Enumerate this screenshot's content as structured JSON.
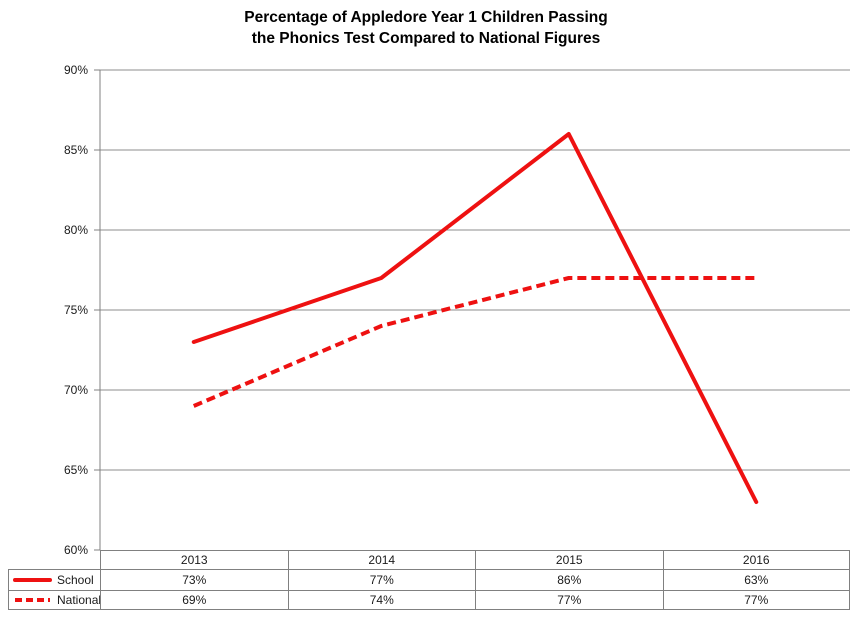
{
  "title": "Percentage of Appledore Year 1 Children Passing\nthe Phonics Test Compared to National Figures",
  "colors": {
    "series": "#EE1111",
    "gridline": "#8C8C8C",
    "axis": "#808080",
    "table_border": "#808080",
    "text": "#1A1A1A"
  },
  "chart_data": {
    "type": "line",
    "title": "Percentage of Appledore Year 1 Children Passing the Phonics Test Compared to National Figures",
    "categories": [
      "2013",
      "2014",
      "2015",
      "2016"
    ],
    "series": [
      {
        "name": "School",
        "style": "solid",
        "values": [
          73,
          77,
          86,
          63
        ]
      },
      {
        "name": "National",
        "style": "dashed",
        "values": [
          69,
          74,
          77,
          77
        ]
      }
    ],
    "ylabel": "",
    "xlabel": "",
    "ylim": [
      60,
      90
    ],
    "ytick_step": 5,
    "ytick_labels": [
      "90%",
      "85%",
      "80%",
      "75%",
      "70%",
      "65%",
      "60%"
    ],
    "grid": true,
    "legend_position": "data-table-left",
    "value_format": "percent"
  },
  "data_table": {
    "years": [
      "2013",
      "2014",
      "2015",
      "2016"
    ],
    "rows": [
      {
        "label": "School",
        "values": [
          "73%",
          "77%",
          "86%",
          "63%"
        ]
      },
      {
        "label": "National",
        "values": [
          "69%",
          "74%",
          "77%",
          "77%"
        ]
      }
    ]
  }
}
